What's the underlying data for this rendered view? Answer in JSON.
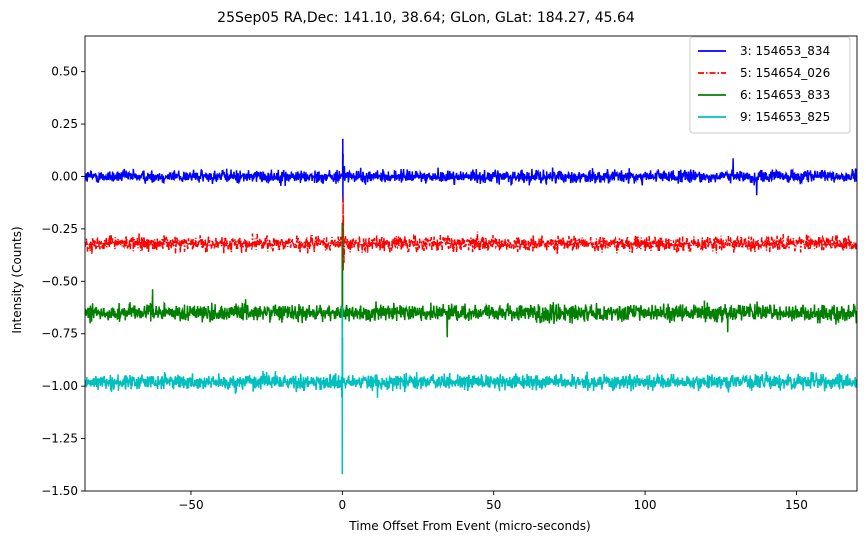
{
  "chart_data": {
    "type": "line",
    "title": "25Sep05 RA,Dec:  141.10,  38.64; GLon, GLat:  184.27,  45.64",
    "xlabel": "Time Offset From Event (micro-seconds)",
    "ylabel": "Intensity (Counts)",
    "xlim": [
      -85,
      170
    ],
    "ylim": [
      -1.5,
      0.67
    ],
    "xticks": [
      -50,
      0,
      50,
      100,
      150
    ],
    "xtick_labels": [
      "−50",
      "0",
      "50",
      "100",
      "150"
    ],
    "yticks": [
      0.5,
      0.25,
      0.0,
      -0.25,
      -0.5,
      -0.75,
      -1.0,
      -1.25,
      -1.5
    ],
    "ytick_labels": [
      "0.50",
      "0.25",
      "0.00",
      "−0.25",
      "−0.50",
      "−0.75",
      "−1.00",
      "−1.25",
      "−1.50"
    ],
    "legend_position": "top-right",
    "series": [
      {
        "name": "3: 154653_834",
        "color": "#0000ff",
        "dash": "solid",
        "baseline": 0.0,
        "noise": 0.03,
        "spike": {
          "x": 0.2,
          "peak": 0.18,
          "dip": -0.12
        }
      },
      {
        "name": "5: 154654_026",
        "color": "#ff0000",
        "dash": "dashdot",
        "baseline": -0.32,
        "noise": 0.035,
        "spike": {
          "x": 0.3,
          "peak": -0.1,
          "dip": -0.45
        }
      },
      {
        "name": "6: 154653_833",
        "color": "#008000",
        "dash": "solid",
        "baseline": -0.65,
        "noise": 0.04,
        "spike": {
          "x": 0.0,
          "peak": -0.22,
          "dip": -0.95
        }
      },
      {
        "name": "9: 154653_825",
        "color": "#00bfbf",
        "dash": "solid",
        "baseline": -0.98,
        "noise": 0.035,
        "spike": {
          "x": 0.0,
          "peak": -0.62,
          "dip": -1.42
        }
      }
    ]
  }
}
